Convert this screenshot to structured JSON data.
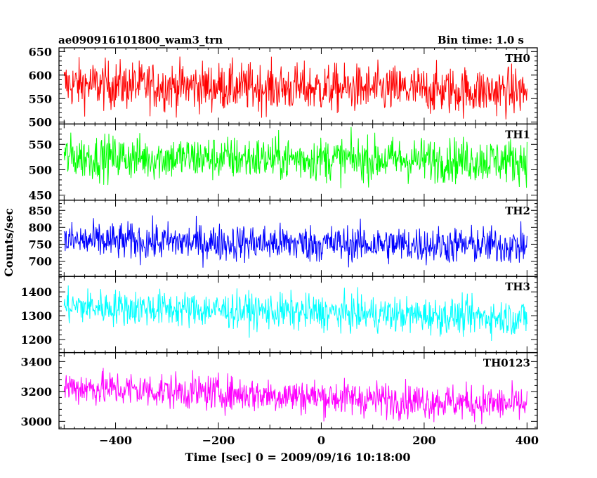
{
  "header": {
    "left_title": "ae090916101800_wam3_trn",
    "right_title": "Bin time: 1.0 s"
  },
  "chart_data": {
    "type": "line",
    "title": "ae090916101800_wam3_trn",
    "subtitle": "Bin time: 1.0 s",
    "xlabel": "Time [sec] 0 = 2009/09/16 10:18:00",
    "ylabel": "Counts/sec",
    "xlim": [
      -510,
      420
    ],
    "xticks": [
      -400,
      -200,
      0,
      200,
      400
    ],
    "x_range_data": [
      -500,
      400
    ],
    "bin_time_s": 1.0,
    "grid": false,
    "panels": [
      {
        "name": "TH0",
        "color": "#ff0000",
        "ylim": [
          496,
          658
        ],
        "yticks": [
          500,
          550,
          600,
          650
        ],
        "mean_start": 580,
        "mean_end": 565,
        "noise_sigma": 26,
        "typical_min": 535,
        "typical_max": 625
      },
      {
        "name": "TH1",
        "color": "#00ff00",
        "ylim": [
          440,
          590
        ],
        "yticks": [
          450,
          500,
          550
        ],
        "mean_start": 525,
        "mean_end": 518,
        "noise_sigma": 22,
        "typical_min": 480,
        "typical_max": 565
      },
      {
        "name": "TH2",
        "color": "#0000ff",
        "ylim": [
          655,
          880
        ],
        "yticks": [
          700,
          750,
          800,
          850
        ],
        "mean_start": 760,
        "mean_end": 745,
        "noise_sigma": 28,
        "typical_min": 710,
        "typical_max": 810
      },
      {
        "name": "TH3",
        "color": "#00ffff",
        "ylim": [
          1145,
          1465
        ],
        "yticks": [
          1200,
          1300,
          1400
        ],
        "mean_start": 1340,
        "mean_end": 1290,
        "noise_sigma": 38,
        "typical_min": 1250,
        "typical_max": 1400
      },
      {
        "name": "TH0123",
        "color": "#ff00ff",
        "ylim": [
          2950,
          3460
        ],
        "yticks": [
          3000,
          3200,
          3400
        ],
        "mean_start": 3230,
        "mean_end": 3110,
        "noise_sigma": 60,
        "typical_min": 3080,
        "typical_max": 3320
      }
    ]
  }
}
